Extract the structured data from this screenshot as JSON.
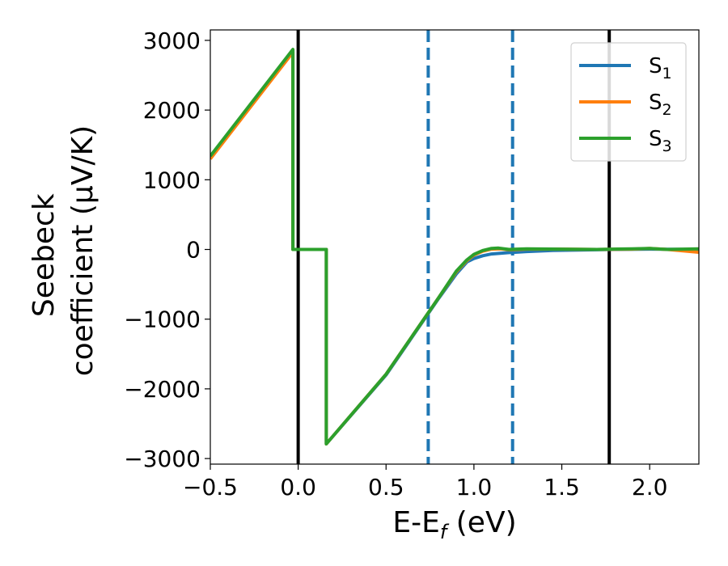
{
  "chart_data": {
    "type": "line",
    "xlabel": {
      "main": "E-E",
      "sub": "f",
      "tail": " (eV)"
    },
    "ylabel": {
      "line1": "Seebeck",
      "line2": "coefficient  (μV/K)"
    },
    "xlim": [
      -0.5,
      2.28
    ],
    "ylim": [
      -3080,
      3150
    ],
    "xticks": [
      {
        "value": -0.5,
        "label": "−0.5"
      },
      {
        "value": 0.0,
        "label": "0.0"
      },
      {
        "value": 0.5,
        "label": "0.5"
      },
      {
        "value": 1.0,
        "label": "1.0"
      },
      {
        "value": 1.5,
        "label": "1.5"
      },
      {
        "value": 2.0,
        "label": "2.0"
      }
    ],
    "yticks": [
      {
        "value": 3000,
        "label": "3000"
      },
      {
        "value": 2000,
        "label": "2000"
      },
      {
        "value": 1000,
        "label": "1000"
      },
      {
        "value": 0,
        "label": "0"
      },
      {
        "value": -1000,
        "label": "−1000"
      },
      {
        "value": -2000,
        "label": "−2000"
      },
      {
        "value": -3000,
        "label": "−3000"
      }
    ],
    "grid": false,
    "legend_position": "upper-right",
    "vertical_lines": [
      {
        "x": 0.0,
        "style": "solid",
        "color": "#000000"
      },
      {
        "x": 0.74,
        "style": "dashed",
        "color": "#1f77b4"
      },
      {
        "x": 1.22,
        "style": "dashed",
        "color": "#1f77b4"
      },
      {
        "x": 1.77,
        "style": "solid",
        "color": "#000000"
      }
    ],
    "series": [
      {
        "name": "S",
        "sub": "1",
        "color": "#1f77b4",
        "points": [
          [
            -0.5,
            1330
          ],
          [
            -0.03,
            2860
          ],
          [
            -0.03,
            0
          ],
          [
            0.16,
            0
          ],
          [
            0.16,
            -2790
          ],
          [
            0.5,
            -1800
          ],
          [
            0.8,
            -700
          ],
          [
            0.9,
            -350
          ],
          [
            0.96,
            -180
          ],
          [
            1.0,
            -130
          ],
          [
            1.05,
            -90
          ],
          [
            1.1,
            -65
          ],
          [
            1.2,
            -45
          ],
          [
            1.3,
            -30
          ],
          [
            1.45,
            -15
          ],
          [
            1.6,
            -8
          ],
          [
            1.8,
            0
          ],
          [
            2.0,
            5
          ],
          [
            2.28,
            0
          ]
        ]
      },
      {
        "name": "S",
        "sub": "2",
        "color": "#ff7f0e",
        "points": [
          [
            -0.5,
            1300
          ],
          [
            -0.03,
            2830
          ],
          [
            -0.03,
            0
          ],
          [
            0.16,
            0
          ],
          [
            0.16,
            -2790
          ],
          [
            0.5,
            -1790
          ],
          [
            0.8,
            -690
          ],
          [
            0.9,
            -320
          ],
          [
            0.96,
            -160
          ],
          [
            1.0,
            -80
          ],
          [
            1.05,
            -25
          ],
          [
            1.1,
            5
          ],
          [
            1.15,
            10
          ],
          [
            1.2,
            -5
          ],
          [
            1.3,
            5
          ],
          [
            1.5,
            5
          ],
          [
            1.7,
            0
          ],
          [
            1.9,
            5
          ],
          [
            2.0,
            15
          ],
          [
            2.1,
            0
          ],
          [
            2.28,
            -40
          ]
        ]
      },
      {
        "name": "S",
        "sub": "3",
        "color": "#2ca02c",
        "points": [
          [
            -0.5,
            1340
          ],
          [
            -0.03,
            2870
          ],
          [
            -0.03,
            0
          ],
          [
            0.16,
            0
          ],
          [
            0.16,
            -2790
          ],
          [
            0.5,
            -1790
          ],
          [
            0.8,
            -690
          ],
          [
            0.9,
            -310
          ],
          [
            0.96,
            -150
          ],
          [
            1.0,
            -70
          ],
          [
            1.05,
            -15
          ],
          [
            1.1,
            15
          ],
          [
            1.14,
            20
          ],
          [
            1.2,
            0
          ],
          [
            1.3,
            10
          ],
          [
            1.5,
            5
          ],
          [
            1.7,
            0
          ],
          [
            1.9,
            10
          ],
          [
            2.0,
            15
          ],
          [
            2.1,
            0
          ],
          [
            2.28,
            10
          ]
        ]
      }
    ]
  }
}
